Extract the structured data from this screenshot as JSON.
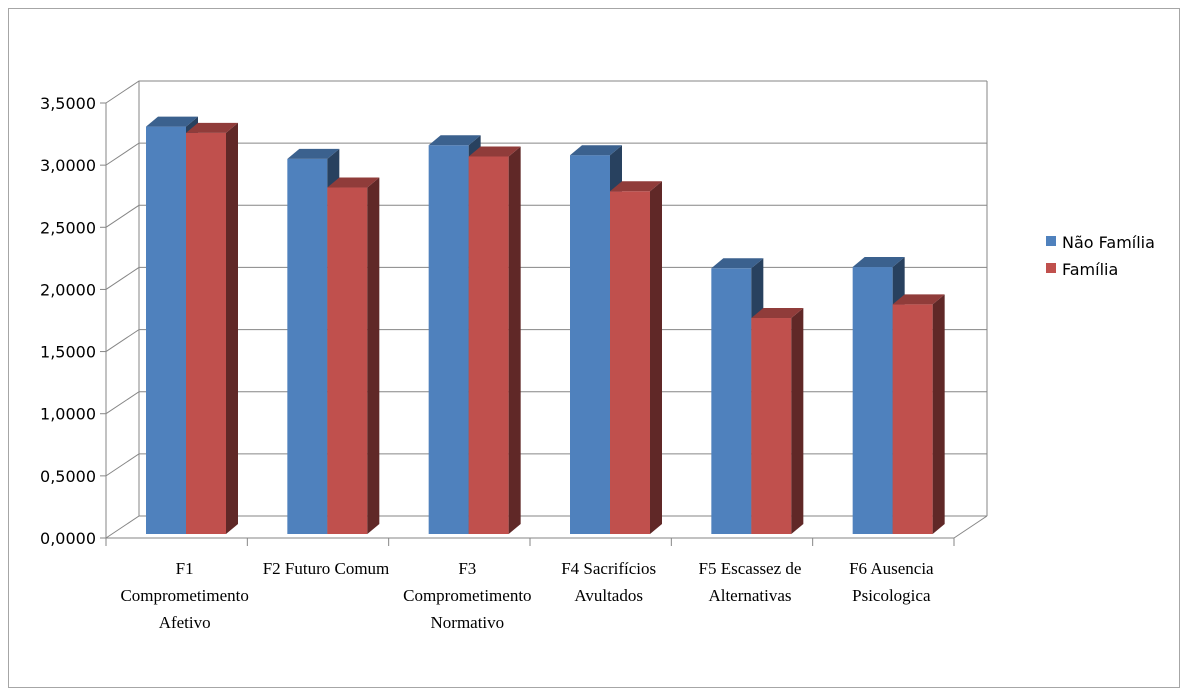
{
  "chart_data": {
    "type": "bar",
    "categories": [
      [
        "F1",
        "Comprometimento",
        "Afetivo"
      ],
      [
        "F2  Futuro Comum"
      ],
      [
        "F3",
        "Comprometimento",
        "Normativo"
      ],
      [
        "F4  Sacrifícios",
        "Avultados"
      ],
      [
        "F5  Escassez de",
        "Alternativas"
      ],
      [
        "F6  Ausencia",
        "Psicologica"
      ]
    ],
    "series": [
      {
        "name": "Não Família",
        "color": "#4F81BD",
        "values": [
          3.31,
          3.05,
          3.16,
          3.08,
          2.17,
          2.18
        ]
      },
      {
        "name": "Família",
        "color": "#C0504D",
        "values": [
          3.26,
          2.82,
          3.07,
          2.79,
          1.77,
          1.88
        ]
      }
    ],
    "yticks": [
      "0,0000",
      "0,5000",
      "1,0000",
      "1,5000",
      "2,0000",
      "2,5000",
      "3,0000",
      "3,5000"
    ],
    "ylim": [
      0,
      3.5
    ],
    "grid": true,
    "legend_position": "right"
  }
}
